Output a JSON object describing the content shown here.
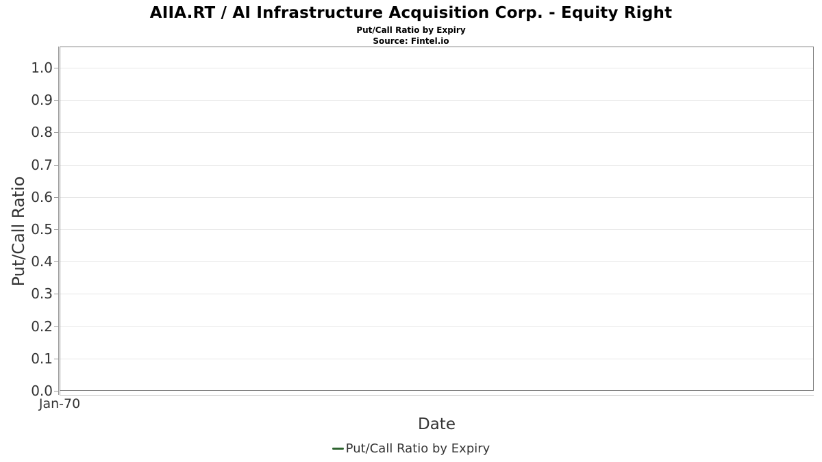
{
  "header": {
    "title": "AIIA.RT / AI Infrastructure Acquisition Corp. - Equity Right",
    "subtitle": "Put/Call Ratio by Expiry",
    "source": "Source: Fintel.io"
  },
  "chart_data": {
    "type": "line",
    "title": "AIIA.RT / AI Infrastructure Acquisition Corp. - Equity Right",
    "subtitle": "Put/Call Ratio by Expiry",
    "source": "Source: Fintel.io",
    "xlabel": "Date",
    "ylabel": "Put/Call Ratio",
    "ylim": [
      0.0,
      1.065
    ],
    "yticks": [
      0.0,
      0.1,
      0.2,
      0.3,
      0.4,
      0.5,
      0.6,
      0.7,
      0.8,
      0.9,
      1.0
    ],
    "xticks": [
      "Jan-70"
    ],
    "grid": "horizontal",
    "legend_position": "bottom-center",
    "series": [
      {
        "name": "Put/Call Ratio by Expiry",
        "color": "#2e6430",
        "x": [],
        "values": []
      }
    ]
  },
  "legend": {
    "items": [
      {
        "label": "Put/Call Ratio by Expiry",
        "marker_color": "#2e6430"
      }
    ]
  },
  "colors": {
    "plot_border": "#808080",
    "gridline": "#e6e6e6",
    "y_axis_line": "#999999",
    "x_axis_line": "#cccccc",
    "tick_mark": "#999999",
    "text": "#333333",
    "title_text": "#000000",
    "series_green": "#2e6430"
  }
}
